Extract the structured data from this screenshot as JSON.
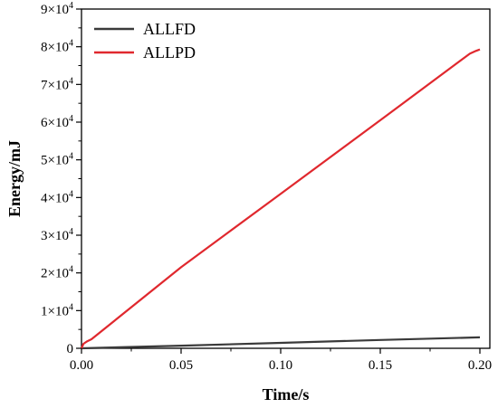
{
  "chart_data": {
    "type": "line",
    "xlabel": "Time/s",
    "ylabel": "Energy/mJ",
    "xlim": [
      0,
      0.205
    ],
    "ylim": [
      0,
      90000
    ],
    "x_ticks": [
      0.0,
      0.05,
      0.1,
      0.15,
      0.2
    ],
    "x_tick_labels": [
      "0.00",
      "0.05",
      "0.10",
      "0.15",
      "0.20"
    ],
    "y_ticks": [
      0,
      10000,
      20000,
      30000,
      40000,
      50000,
      60000,
      70000,
      80000,
      90000
    ],
    "y_tick_labels": [
      {
        "base": "0",
        "exp": ""
      },
      {
        "base": "1×10",
        "exp": "4"
      },
      {
        "base": "2×10",
        "exp": "4"
      },
      {
        "base": "3×10",
        "exp": "4"
      },
      {
        "base": "4×10",
        "exp": "4"
      },
      {
        "base": "5×10",
        "exp": "4"
      },
      {
        "base": "6×10",
        "exp": "4"
      },
      {
        "base": "7×10",
        "exp": "4"
      },
      {
        "base": "8×10",
        "exp": "4"
      },
      {
        "base": "9×10",
        "exp": "4"
      }
    ],
    "legend_position": "top-left",
    "series": [
      {
        "name": "ALLFD",
        "color": "#3a3a3a",
        "x": [
          0,
          0.05,
          0.1,
          0.15,
          0.2
        ],
        "y": [
          0,
          700,
          1450,
          2200,
          2900
        ]
      },
      {
        "name": "ALLPD",
        "color": "#e0282e",
        "x": [
          0,
          0.001,
          0.003,
          0.005,
          0.05,
          0.1,
          0.15,
          0.195,
          0.198,
          0.2
        ],
        "y": [
          0,
          1200,
          1900,
          2400,
          21500,
          41000,
          60500,
          78200,
          78900,
          79300
        ]
      }
    ]
  }
}
